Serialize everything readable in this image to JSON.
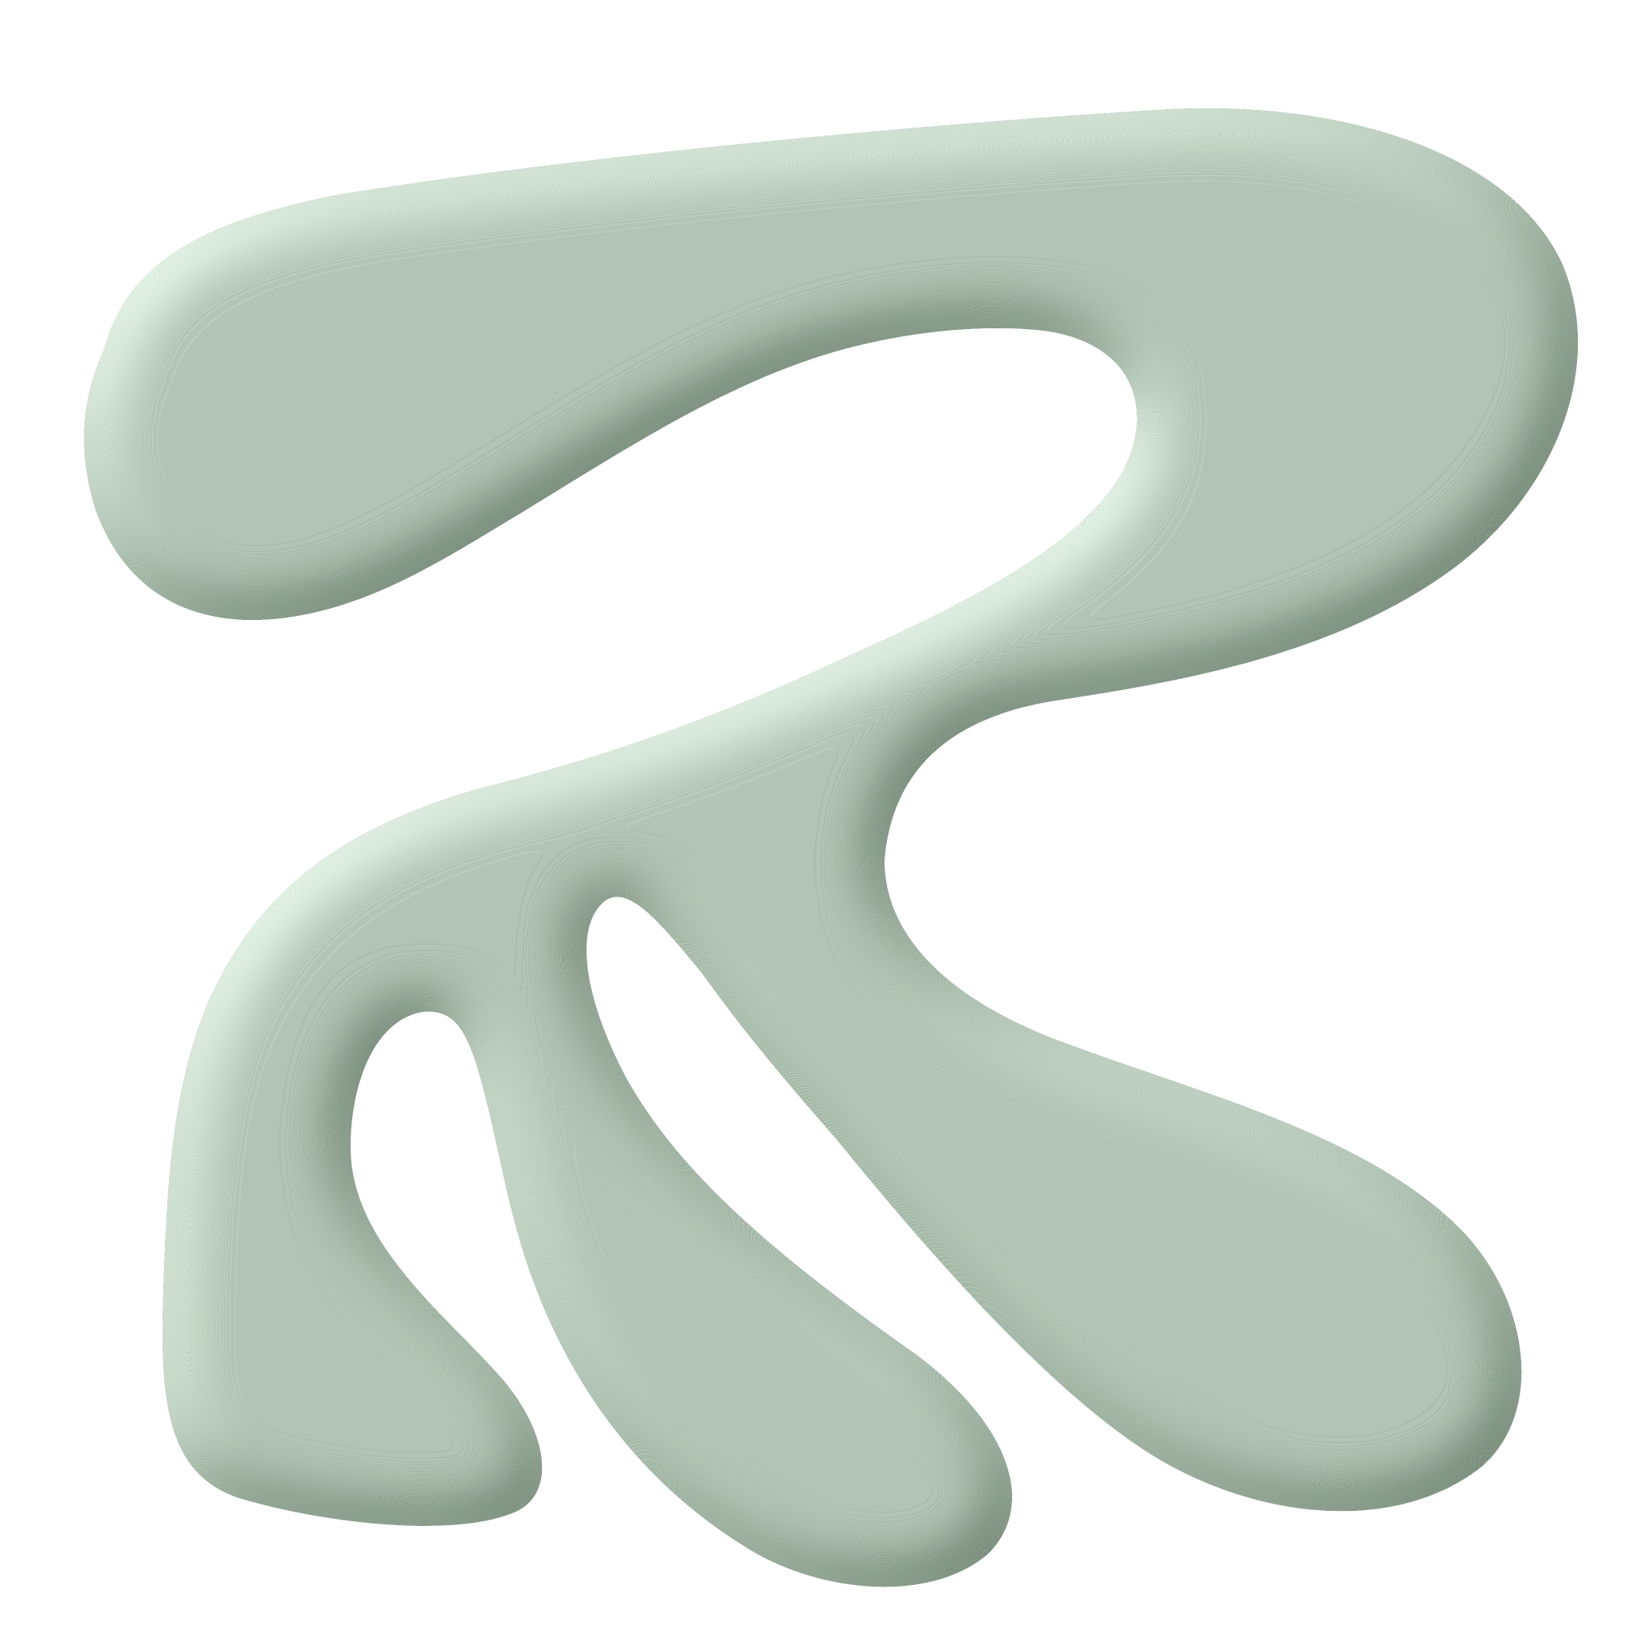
{
  "scene": {
    "background_color": "#ffffff",
    "shape": {
      "form": "tubular-blob",
      "colors": {
        "highlight": "#f1fbf3",
        "light": "#c6dcc9",
        "mid": "#7f9d84",
        "dark": "#2c4432",
        "shadow": "#050806"
      }
    }
  }
}
